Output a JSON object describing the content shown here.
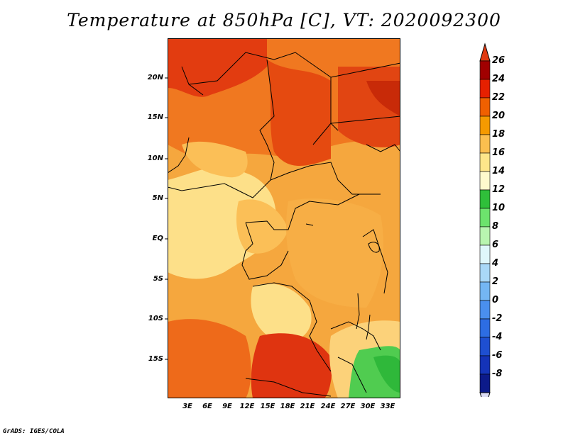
{
  "title": "Temperature at 850hPa [C], VT: 2020092300",
  "footer": "GrADS: IGES/COLA",
  "map": {
    "lat_labels": [
      "20N",
      "15N",
      "10N",
      "5N",
      "EQ",
      "5S",
      "10S",
      "15S"
    ],
    "lon_labels": [
      "3E",
      "6E",
      "9E",
      "12E",
      "15E",
      "18E",
      "21E",
      "24E",
      "27E",
      "30E",
      "33E"
    ]
  },
  "colorbar": {
    "labels": [
      "26",
      "24",
      "22",
      "20",
      "18",
      "16",
      "14",
      "12",
      "10",
      "8",
      "6",
      "4",
      "2",
      "0",
      "-2",
      "-4",
      "-6",
      "-8"
    ],
    "colors": [
      "#a00000",
      "#e62000",
      "#f06000",
      "#f59a00",
      "#fbbf4f",
      "#fee68a",
      "#fffacd",
      "#2fbf3a",
      "#6de36d",
      "#b8f5b0",
      "#dff7fb",
      "#a9d8f7",
      "#74b6f3",
      "#4a8fee",
      "#2d6de3",
      "#1e4fd1",
      "#1433b8",
      "#0c1a8a",
      "#050a58",
      "#dcdcf5"
    ],
    "top_triangle": "#e03a12",
    "bottom_triangle": "#dcdcf5"
  }
}
